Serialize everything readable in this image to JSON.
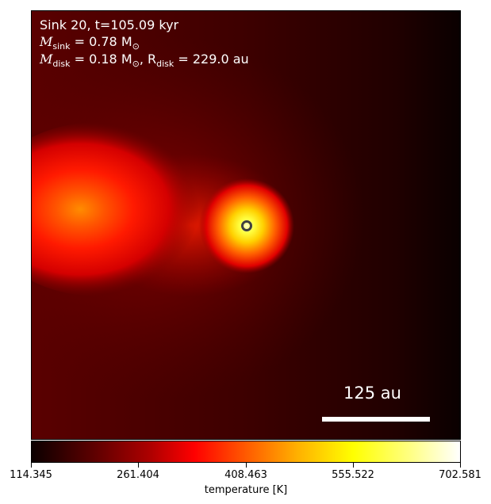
{
  "chart_data": {
    "type": "heatmap",
    "title_lines": {
      "line1": "Sink 20, t=105.09 kyr",
      "line2_var": "M",
      "line2_sub": "sink",
      "line2_rest": " = 0.78 M",
      "line2_unit_sub": "⊙",
      "line3_var": "M",
      "line3_sub": "disk",
      "line3_rest": " = 0.18 M",
      "line3_unit_sub": "⊙",
      "line3_r_var": ", R",
      "line3_r_sub": "disk",
      "line3_r_rest": " = 229.0 au"
    },
    "colormap": "hot",
    "colorbar": {
      "label": "temperature [K]",
      "min": 114.345,
      "max": 702.581,
      "ticks": [
        "114.345",
        "261.404",
        "408.463",
        "555.522",
        "702.581"
      ]
    },
    "scale_bar": {
      "label": "125 au"
    },
    "sink_marker": "ring"
  }
}
